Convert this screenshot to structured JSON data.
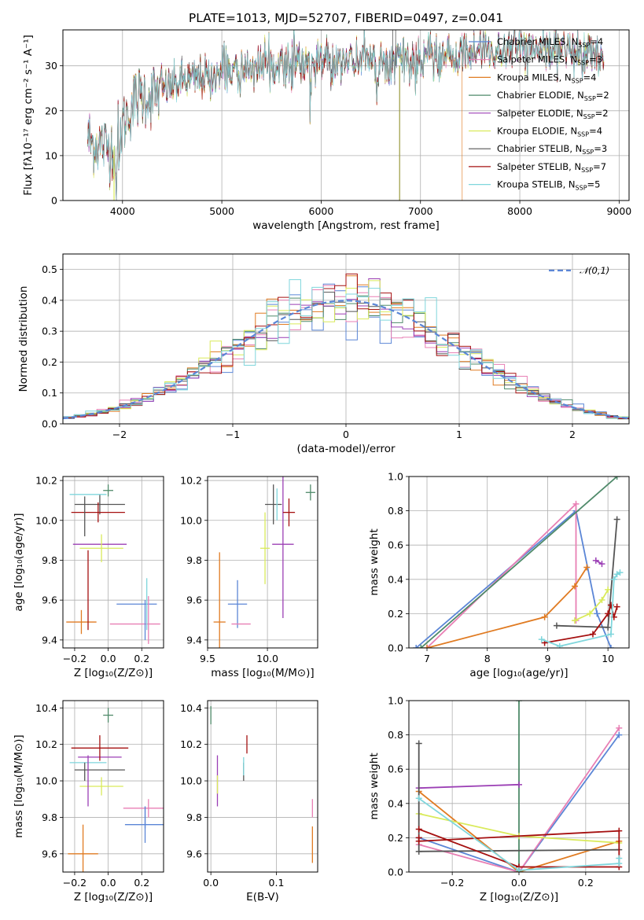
{
  "colors": {
    "chabrier_miles": "#5b86d6",
    "salpeter_miles": "#e87fb4",
    "kroupa_miles": "#e07b22",
    "chabrier_elodie": "#4f8a6a",
    "salpeter_elodie": "#9b3fb5",
    "kroupa_elodie": "#d9ea5a",
    "chabrier_stelib": "#555555",
    "salpeter_stelib": "#a51010",
    "kroupa_stelib": "#7fd6dc"
  },
  "chart_data": [
    {
      "id": "spectrum",
      "type": "line",
      "title": "PLATE=1013, MJD=52707, FIBERID=0497, z=0.041",
      "xlabel": "wavelength [Angstrom, rest frame]",
      "ylabel": "Flux [fλ10⁻¹⁷ erg cm⁻² s⁻¹ A⁻¹]",
      "xlim": [
        3400,
        9100
      ],
      "ylim": [
        0,
        38
      ],
      "xticks": [
        4000,
        5000,
        6000,
        7000,
        8000,
        9000
      ],
      "yticks": [
        0,
        10,
        20,
        30
      ],
      "grid": true,
      "legend_position": "right",
      "continuum": {
        "x": [
          3650,
          3700,
          3800,
          3900,
          4000,
          4100,
          4200,
          4300,
          4400,
          4500,
          4600,
          4800,
          5000,
          5200,
          5400,
          5600,
          5800,
          6000,
          6200,
          6400,
          6600,
          6800,
          7000,
          7200,
          7400,
          7600,
          7800,
          8000,
          8200,
          8400,
          8600,
          8800
        ],
        "y": [
          14,
          13,
          12.5,
          12,
          17,
          22,
          24,
          24,
          25,
          26,
          27,
          28,
          29,
          30,
          30.5,
          31,
          31,
          31.5,
          32,
          32,
          31.5,
          31.5,
          32,
          32,
          33,
          34,
          34,
          34.5,
          34,
          34,
          34,
          33.5
        ]
      },
      "series": [
        {
          "name": "Chabrier MILES, N",
          "sub": "SSP",
          "suffix": "=4",
          "color_key": "chabrier_miles"
        },
        {
          "name": "Salpeter MILES, N",
          "sub": "SSP",
          "suffix": "=3",
          "color_key": "salpeter_miles"
        },
        {
          "name": "Kroupa MILES, N",
          "sub": "SSP",
          "suffix": "=4",
          "color_key": "kroupa_miles"
        },
        {
          "name": "Chabrier ELODIE, N",
          "sub": "SSP",
          "suffix": "=2",
          "color_key": "chabrier_elodie"
        },
        {
          "name": "Salpeter ELODIE, N",
          "sub": "SSP",
          "suffix": "=2",
          "color_key": "salpeter_elodie"
        },
        {
          "name": "Kroupa ELODIE, N",
          "sub": "SSP",
          "suffix": "=4",
          "color_key": "kroupa_elodie"
        },
        {
          "name": "Chabrier STELIB, N",
          "sub": "SSP",
          "suffix": "=3",
          "color_key": "chabrier_stelib"
        },
        {
          "name": "Salpeter STELIB, N",
          "sub": "SSP",
          "suffix": "=7",
          "color_key": "salpeter_stelib"
        },
        {
          "name": "Kroupa STELIB, N",
          "sub": "SSP",
          "suffix": "=5",
          "color_key": "kroupa_stelib"
        }
      ]
    },
    {
      "id": "residuals",
      "type": "histogram",
      "xlabel": "(data-model)/error",
      "ylabel": "Normed distribution",
      "xlim": [
        -2.5,
        2.5
      ],
      "ylim": [
        0,
        0.55
      ],
      "xticks": [
        -2,
        -1,
        0,
        1,
        2
      ],
      "yticks": [
        0.0,
        0.1,
        0.2,
        0.3,
        0.4,
        0.5
      ],
      "grid": true,
      "reference_curve": {
        "label": "𝒩(0,1)",
        "type": "normal",
        "mean": 0,
        "std": 1,
        "color": "#5b86d6"
      },
      "bin_width": 0.1
    },
    {
      "id": "z_age",
      "type": "errorbar",
      "xlabel": "Z [log₁₀(Z/Z⊙)]",
      "ylabel": "age  [log₁₀(age/yr)]",
      "xlim": [
        -0.27,
        0.33
      ],
      "ylim": [
        9.36,
        10.22
      ],
      "xticks": [
        -0.2,
        0.0,
        0.2
      ],
      "yticks": [
        9.4,
        9.6,
        9.8,
        10.0,
        10.2
      ],
      "grid": true,
      "points": [
        {
          "key": "chabrier_miles",
          "x": 0.17,
          "y": 9.58,
          "xerr": 0.12,
          "yerr": 0.0
        },
        {
          "key": "salpeter_miles",
          "x": 0.16,
          "y": 9.48,
          "xerr": 0.15,
          "yerr": 0.0
        },
        {
          "key": "kroupa_miles",
          "x": -0.16,
          "y": 9.49,
          "xerr": 0.09,
          "yerr": 0.06
        },
        {
          "key": "chabrier_elodie",
          "x": 0.0,
          "y": 10.15,
          "xerr": 0.03,
          "yerr": 0.03
        },
        {
          "key": "salpeter_elodie",
          "x": -0.05,
          "y": 9.88,
          "xerr": 0.16,
          "yerr": 0.0
        },
        {
          "key": "kroupa_elodie",
          "x": -0.04,
          "y": 9.86,
          "xerr": 0.13,
          "yerr": 0.07
        },
        {
          "key": "chabrier_stelib",
          "x": -0.05,
          "y": 10.08,
          "xerr": 0.15,
          "yerr": 0.05
        },
        {
          "key": "salpeter_stelib",
          "x": -0.06,
          "y": 10.04,
          "xerr": 0.16,
          "yerr": 0.05
        },
        {
          "key": "kroupa_stelib",
          "x": -0.12,
          "y": 10.13,
          "xerr": 0.11,
          "yerr": 0.0
        },
        {
          "key": "kroupa_stelib",
          "x": 0.23,
          "y": 9.58,
          "xerr": 0.0,
          "yerr": 0.13
        },
        {
          "key": "salpeter_miles",
          "x": 0.24,
          "y": 9.5,
          "xerr": 0.0,
          "yerr": 0.12
        },
        {
          "key": "chabrier_miles",
          "x": 0.22,
          "y": 9.5,
          "xerr": 0.0,
          "yerr": 0.1
        },
        {
          "key": "salpeter_stelib",
          "x": -0.12,
          "y": 9.65,
          "xerr": 0.0,
          "yerr": 0.2
        },
        {
          "key": "chabrier_stelib",
          "x": -0.14,
          "y": 10.02,
          "xerr": 0.0,
          "yerr": 0.1
        }
      ]
    },
    {
      "id": "mass_age",
      "type": "errorbar",
      "xlabel": "mass [log₁₀(M/M⊙)]",
      "xlim": [
        9.5,
        10.42
      ],
      "ylim": [
        9.36,
        10.22
      ],
      "xticks": [
        9.5,
        10.0
      ],
      "yticks": [
        9.4,
        9.6,
        9.8,
        10.0,
        10.2
      ],
      "grid": true,
      "points": [
        {
          "key": "kroupa_miles",
          "x": 9.6,
          "y": 9.49,
          "xerr": 0.05,
          "yerr": 0.35
        },
        {
          "key": "chabrier_miles",
          "x": 9.75,
          "y": 9.58,
          "xerr": 0.08,
          "yerr": 0.12
        },
        {
          "key": "salpeter_miles",
          "x": 9.78,
          "y": 9.48,
          "xerr": 0.08,
          "yerr": 0.0
        },
        {
          "key": "kroupa_elodie",
          "x": 9.98,
          "y": 9.86,
          "xerr": 0.04,
          "yerr": 0.18
        },
        {
          "key": "salpeter_elodie",
          "x": 10.13,
          "y": 9.88,
          "xerr": 0.09,
          "yerr": 0.37
        },
        {
          "key": "chabrier_stelib",
          "x": 10.05,
          "y": 10.08,
          "xerr": 0.07,
          "yerr": 0.1
        },
        {
          "key": "salpeter_stelib",
          "x": 10.18,
          "y": 10.04,
          "xerr": 0.05,
          "yerr": 0.07
        },
        {
          "key": "kroupa_stelib",
          "x": 10.08,
          "y": 10.08,
          "xerr": 0.0,
          "yerr": 0.08
        },
        {
          "key": "chabrier_elodie",
          "x": 10.36,
          "y": 10.14,
          "xerr": 0.04,
          "yerr": 0.04
        }
      ]
    },
    {
      "id": "age_weight",
      "type": "line",
      "xlabel": "age  [log₁₀(age/yr)]",
      "ylabel": "mass weight",
      "xlim": [
        6.7,
        10.35
      ],
      "ylim": [
        0,
        1.0
      ],
      "xticks": [
        7,
        8,
        9,
        10
      ],
      "yticks": [
        0.0,
        0.2,
        0.4,
        0.6,
        0.8,
        1.0
      ],
      "grid": true,
      "series": [
        {
          "key": "chabrier_miles",
          "x": [
            6.82,
            9.47,
            9.82,
            10.05
          ],
          "y": [
            0.0,
            0.8,
            0.2,
            0.0
          ]
        },
        {
          "key": "salpeter_miles",
          "x": [
            7.0,
            9.47,
            9.47
          ],
          "y": [
            0.0,
            0.84,
            0.16
          ]
        },
        {
          "key": "kroupa_miles",
          "x": [
            7.0,
            8.95,
            9.45,
            9.65
          ],
          "y": [
            0.0,
            0.18,
            0.36,
            0.47
          ]
        },
        {
          "key": "chabrier_elodie",
          "x": [
            6.9,
            10.15
          ],
          "y": [
            0.0,
            1.0
          ]
        },
        {
          "key": "salpeter_elodie",
          "x": [
            9.8,
            9.9
          ],
          "y": [
            0.51,
            0.49
          ]
        },
        {
          "key": "kroupa_elodie",
          "x": [
            9.45,
            9.7,
            9.9,
            10.0
          ],
          "y": [
            0.16,
            0.2,
            0.28,
            0.34
          ]
        },
        {
          "key": "chabrier_stelib",
          "x": [
            9.15,
            10.0,
            10.15
          ],
          "y": [
            0.13,
            0.12,
            0.75
          ]
        },
        {
          "key": "salpeter_stelib",
          "x": [
            8.95,
            9.75,
            10.0,
            10.05,
            10.1,
            10.15
          ],
          "y": [
            0.03,
            0.08,
            0.2,
            0.25,
            0.18,
            0.24
          ]
        },
        {
          "key": "kroupa_stelib",
          "x": [
            8.9,
            9.2,
            10.05,
            10.1,
            10.15,
            10.2
          ],
          "y": [
            0.05,
            0.01,
            0.08,
            0.4,
            0.43,
            0.44
          ]
        }
      ]
    },
    {
      "id": "z_mass",
      "type": "errorbar",
      "xlabel": "Z [log₁₀(Z/Z⊙)]",
      "ylabel": "mass [log₁₀(M/M⊙)]",
      "xlim": [
        -0.27,
        0.33
      ],
      "ylim": [
        9.5,
        10.44
      ],
      "xticks": [
        -0.2,
        0.0,
        0.2
      ],
      "yticks": [
        9.6,
        9.8,
        10.0,
        10.2,
        10.4
      ],
      "grid": true,
      "points": [
        {
          "key": "chabrier_miles",
          "x": 0.22,
          "y": 9.76,
          "xerr": 0.12,
          "yerr": 0.1
        },
        {
          "key": "salpeter_miles",
          "x": 0.24,
          "y": 9.85,
          "xerr": 0.15,
          "yerr": 0.05
        },
        {
          "key": "kroupa_miles",
          "x": -0.15,
          "y": 9.6,
          "xerr": 0.09,
          "yerr": 0.16
        },
        {
          "key": "chabrier_elodie",
          "x": 0.0,
          "y": 10.36,
          "xerr": 0.03,
          "yerr": 0.04
        },
        {
          "key": "salpeter_elodie",
          "x": -0.05,
          "y": 10.13,
          "xerr": 0.13,
          "yerr": 0.0
        },
        {
          "key": "kroupa_elodie",
          "x": -0.04,
          "y": 9.97,
          "xerr": 0.13,
          "yerr": 0.05
        },
        {
          "key": "chabrier_stelib",
          "x": -0.05,
          "y": 10.06,
          "xerr": 0.15,
          "yerr": 0.0
        },
        {
          "key": "salpeter_stelib",
          "x": -0.05,
          "y": 10.18,
          "xerr": 0.17,
          "yerr": 0.07
        },
        {
          "key": "kroupa_stelib",
          "x": -0.12,
          "y": 10.1,
          "xerr": 0.11,
          "yerr": 0.0
        },
        {
          "key": "salpeter_elodie",
          "x": -0.12,
          "y": 10.0,
          "xerr": 0.0,
          "yerr": 0.14
        },
        {
          "key": "chabrier_stelib",
          "x": -0.14,
          "y": 10.05,
          "xerr": 0.0,
          "yerr": 0.05
        },
        {
          "key": "chabrier_miles",
          "x": 0.22,
          "y": 9.8,
          "xerr": 0.0,
          "yerr": 0.06
        }
      ]
    },
    {
      "id": "ebv_mass",
      "type": "errorbar",
      "xlabel": "E(B-V)",
      "xlim": [
        -0.005,
        0.163
      ],
      "ylim": [
        9.5,
        10.44
      ],
      "xticks": [
        0.0,
        0.1
      ],
      "yticks": [
        9.6,
        9.8,
        10.0,
        10.2,
        10.4
      ],
      "grid": true,
      "points": [
        {
          "key": "chabrier_elodie",
          "x": 0.0,
          "y": 10.36,
          "xerr": 0.0,
          "yerr": 0.05
        },
        {
          "key": "salpeter_elodie",
          "x": 0.01,
          "y": 10.0,
          "xerr": 0.0,
          "yerr": 0.14
        },
        {
          "key": "kroupa_elodie",
          "x": 0.01,
          "y": 9.98,
          "xerr": 0.0,
          "yerr": 0.05
        },
        {
          "key": "chabrier_stelib",
          "x": 0.05,
          "y": 10.05,
          "xerr": 0.0,
          "yerr": 0.05
        },
        {
          "key": "kroupa_stelib",
          "x": 0.05,
          "y": 10.08,
          "xerr": 0.0,
          "yerr": 0.05
        },
        {
          "key": "salpeter_stelib",
          "x": 0.055,
          "y": 10.2,
          "xerr": 0.0,
          "yerr": 0.05
        },
        {
          "key": "kroupa_miles",
          "x": 0.155,
          "y": 9.65,
          "xerr": 0.0,
          "yerr": 0.1
        },
        {
          "key": "salpeter_miles",
          "x": 0.155,
          "y": 9.85,
          "xerr": 0.0,
          "yerr": 0.05
        }
      ]
    },
    {
      "id": "z_weight",
      "type": "line",
      "xlabel": "Z [log₁₀(Z/Z⊙)]",
      "ylabel": "mass weight",
      "xlim": [
        -0.33,
        0.33
      ],
      "ylim": [
        0,
        1.0
      ],
      "xticks": [
        -0.2,
        0.0,
        0.2
      ],
      "yticks": [
        0.0,
        0.2,
        0.4,
        0.6,
        0.8,
        1.0
      ],
      "grid": true,
      "series": [
        {
          "key": "chabrier_miles",
          "x": [
            -0.3,
            0.0,
            0.3
          ],
          "y": [
            0.2,
            0.0,
            0.8
          ]
        },
        {
          "key": "salpeter_miles",
          "x": [
            -0.3,
            0.0,
            0.3
          ],
          "y": [
            0.16,
            0.0,
            0.84
          ]
        },
        {
          "key": "kroupa_miles",
          "x": [
            -0.3,
            0.0,
            0.3
          ],
          "y": [
            0.47,
            0.0,
            0.18
          ]
        },
        {
          "key": "chabrier_elodie",
          "x": [
            0.0,
            0.0
          ],
          "y": [
            0.0,
            1.0
          ]
        },
        {
          "key": "salpeter_elodie",
          "x": [
            -0.3,
            0.0
          ],
          "y": [
            0.49,
            0.51
          ]
        },
        {
          "key": "kroupa_elodie",
          "x": [
            -0.3,
            0.0,
            0.3
          ],
          "y": [
            0.34,
            0.21,
            0.17
          ]
        },
        {
          "key": "chabrier_stelib",
          "x": [
            -0.3,
            -0.3,
            0.3
          ],
          "y": [
            0.75,
            0.12,
            0.13
          ]
        },
        {
          "key": "salpeter_stelib",
          "x": [
            -0.3,
            0.0,
            0.3,
            0.3,
            -0.3,
            -0.3
          ],
          "y": [
            0.25,
            0.03,
            0.03,
            0.24,
            0.18,
            0.2
          ]
        },
        {
          "key": "kroupa_stelib",
          "x": [
            -0.3,
            0.0,
            0.3,
            0.3
          ],
          "y": [
            0.43,
            0.01,
            0.05,
            0.08
          ]
        }
      ]
    }
  ]
}
